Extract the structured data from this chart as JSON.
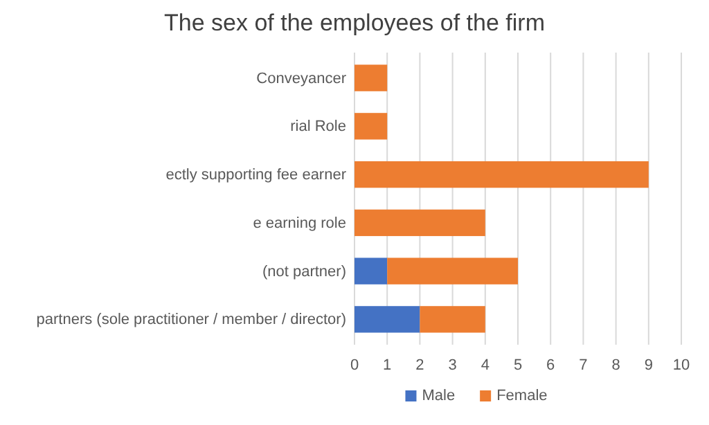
{
  "chart_data": {
    "type": "bar",
    "title": "The sex of the employees of the firm",
    "orientation": "horizontal",
    "stacked": true,
    "categories": [
      "Conveyancer",
      "rial Role",
      "ectly supporting fee earner",
      "e earning role",
      "(not partner)",
      "partners (sole practitioner / member / director)"
    ],
    "series": [
      {
        "name": "Male",
        "color": "#4472c4",
        "values": [
          0,
          0,
          0,
          0,
          1,
          2
        ]
      },
      {
        "name": "Female",
        "color": "#ed7d31",
        "values": [
          1,
          1,
          9,
          4,
          4,
          2
        ]
      }
    ],
    "xlim": [
      0,
      10
    ],
    "xticks": [
      0,
      1,
      2,
      3,
      4,
      5,
      6,
      7,
      8,
      9,
      10
    ],
    "grid": "x",
    "legend": "bottom"
  }
}
